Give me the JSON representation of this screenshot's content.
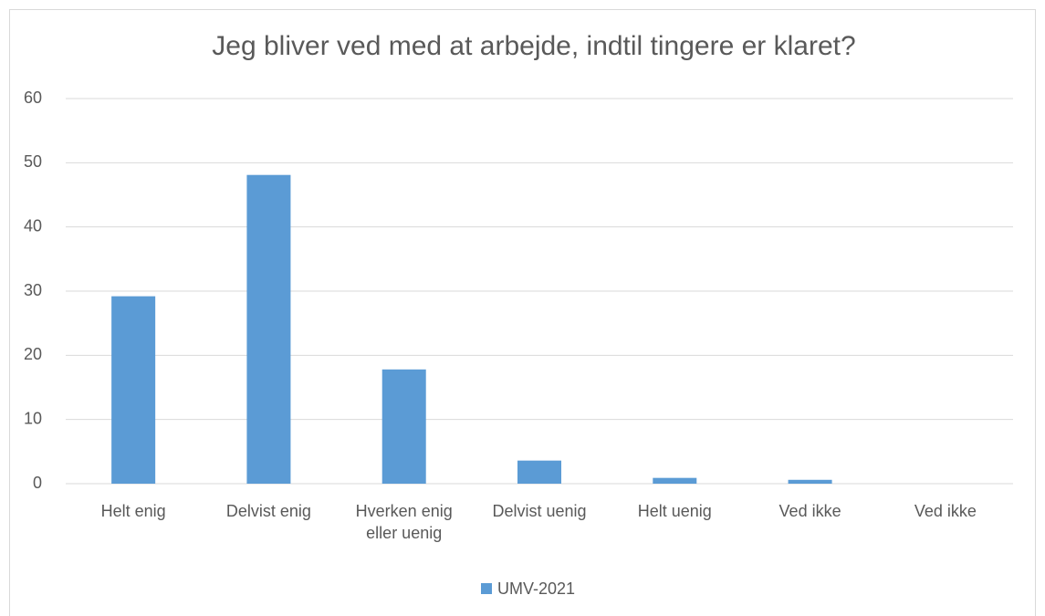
{
  "chart_data": {
    "type": "bar",
    "title": "Jeg bliver ved med at arbejde, indtil tingere er klaret?",
    "categories": [
      "Helt enig",
      "Delvist enig",
      "Hverken enig eller uenig",
      "Delvist uenig",
      "Helt uenig",
      "Ved ikke",
      "Ved ikke"
    ],
    "series": [
      {
        "name": "UMV-2021",
        "color": "#5b9bd5",
        "values": [
          29.2,
          48.1,
          17.8,
          3.6,
          0.9,
          0.6,
          0
        ]
      }
    ],
    "ylim": [
      0,
      60
    ],
    "yticks": [
      0,
      10,
      20,
      30,
      40,
      50,
      60
    ],
    "grid": true,
    "legend": "bottom"
  }
}
